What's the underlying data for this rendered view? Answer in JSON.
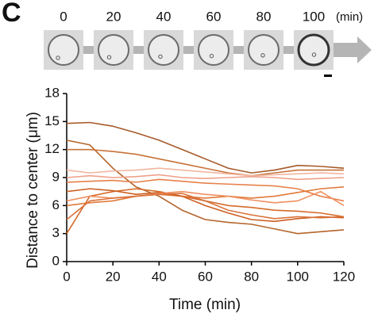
{
  "panel_label": "C",
  "time_strip": {
    "times": [
      0,
      20,
      40,
      60,
      80,
      100
    ],
    "unit": "(min)"
  },
  "chart_data": {
    "type": "line",
    "x_label": "Time (min)",
    "y_label": "Distance to center (μm)",
    "x": [
      0,
      10,
      20,
      30,
      40,
      50,
      60,
      70,
      80,
      90,
      100,
      110,
      120
    ],
    "xlim": [
      0,
      120
    ],
    "xticks": [
      0,
      20,
      40,
      60,
      80,
      100,
      120
    ],
    "ylim": [
      0,
      18
    ],
    "yticks": [
      0,
      3,
      6,
      9,
      12,
      15,
      18
    ],
    "series": [
      {
        "color": "#a65a2a",
        "values": [
          14.8,
          14.9,
          14.5,
          13.8,
          13,
          12,
          11,
          10,
          9.5,
          9.8,
          10.3,
          10.2,
          10
        ]
      },
      {
        "color": "#b5652b",
        "values": [
          13,
          12.5,
          10,
          8,
          7,
          5.5,
          4.5,
          4.2,
          4,
          3.5,
          3,
          3.2,
          3.4
        ]
      },
      {
        "color": "#c8733a",
        "values": [
          12,
          12,
          11.8,
          11.5,
          11,
          10.5,
          10,
          9.5,
          9.2,
          9.5,
          9.8,
          9.8,
          9.8
        ]
      },
      {
        "color": "#f2b6a0",
        "values": [
          9.8,
          9.5,
          9.7,
          9.8,
          10,
          9.8,
          9.6,
          9.4,
          9.2,
          9.3,
          9.4,
          9.5,
          9.4
        ]
      },
      {
        "color": "#eea08a",
        "values": [
          9,
          9.2,
          9,
          9.1,
          9.3,
          9,
          8.9,
          9,
          9.1,
          9,
          8.8,
          8.9,
          9
        ]
      },
      {
        "color": "#e6814a",
        "values": [
          8.5,
          8.6,
          8.7,
          8.5,
          8.8,
          8.6,
          8.4,
          8.3,
          8.2,
          8.1,
          7.8,
          7,
          6.5
        ]
      },
      {
        "color": "#d56b2a",
        "values": [
          3,
          7,
          7.5,
          7.8,
          7.5,
          7,
          6.5,
          6,
          5.8,
          5.5,
          5.4,
          5.2,
          4.8
        ]
      },
      {
        "color": "#e07a3a",
        "values": [
          6,
          6.3,
          6.5,
          7,
          7.2,
          7,
          6.8,
          7,
          6.8,
          7,
          7.4,
          7.8,
          8
        ]
      },
      {
        "color": "#cc5f22",
        "values": [
          7.5,
          7.8,
          7.6,
          7.2,
          7.4,
          7,
          6,
          5.2,
          4.5,
          4.3,
          4.6,
          4.8,
          4.7
        ]
      },
      {
        "color": "#f09060",
        "values": [
          6.5,
          7,
          6.8,
          7,
          7.3,
          7.5,
          7.2,
          7,
          6.6,
          6.3,
          6.5,
          7.5,
          6
        ]
      },
      {
        "color": "#d9723a",
        "values": [
          4.5,
          6.5,
          6.8,
          7,
          7.2,
          7.3,
          6.5,
          5.5,
          5,
          4.6,
          4.8,
          4.7,
          4.8
        ]
      }
    ]
  }
}
